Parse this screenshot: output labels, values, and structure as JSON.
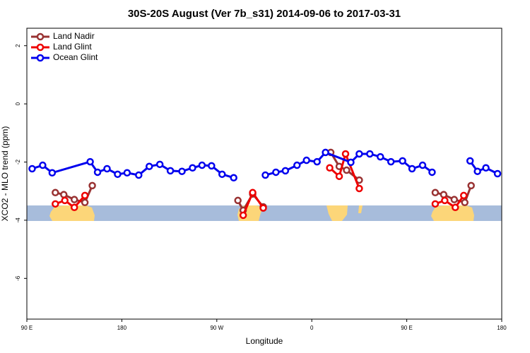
{
  "chart_data": {
    "type": "line",
    "title": "30S-20S August (Ver 7b_s31)   2014-09-06 to 2017-03-31",
    "xlabel": "Longitude",
    "ylabel": "XCO2 - MLO trend (ppm)",
    "xlim": [
      90,
      540
    ],
    "xticks": [
      {
        "value": 90,
        "label": "90 E"
      },
      {
        "value": 180,
        "label": "180"
      },
      {
        "value": 270,
        "label": "90 W"
      },
      {
        "value": 360,
        "label": "0"
      },
      {
        "value": 450,
        "label": "90 E"
      },
      {
        "value": 540,
        "label": "180"
      }
    ],
    "ylim": [
      -7.4,
      2.6
    ],
    "yticks": [
      -6,
      -4,
      -2,
      0,
      2
    ],
    "legend": "top-left",
    "series": [
      {
        "name": "Land Nadir",
        "color": "#993333",
        "x": [
          117,
          125,
          135,
          145,
          152,
          null,
          290,
          295,
          304,
          314,
          null,
          378,
          386,
          393,
          405,
          null,
          477,
          485,
          495,
          505,
          511
        ],
        "values": [
          -3.05,
          -3.12,
          -3.29,
          -3.39,
          -2.81,
          null,
          -3.32,
          -3.66,
          -3.1,
          -3.54,
          null,
          -1.67,
          -2.15,
          -2.28,
          -2.62,
          null,
          -3.05,
          -3.12,
          -3.29,
          -3.39,
          -2.81
        ]
      },
      {
        "name": "Land Glint",
        "color": "#ee0000",
        "x": [
          117,
          126,
          135,
          145,
          null,
          295,
          304,
          314,
          null,
          377,
          386,
          392,
          405,
          null,
          477,
          486,
          496,
          504
        ],
        "values": [
          -3.44,
          -3.32,
          -3.56,
          -3.15,
          null,
          -3.83,
          -3.05,
          -3.58,
          null,
          -2.2,
          -2.49,
          -1.72,
          -2.91,
          null,
          -3.44,
          -3.32,
          -3.56,
          -3.15
        ]
      },
      {
        "name": "Ocean Glint",
        "color": "#0000ee",
        "x": [
          95,
          105,
          114,
          150,
          157,
          166,
          176,
          185,
          196,
          206,
          216,
          226,
          237,
          247,
          256,
          265,
          275,
          286,
          null,
          316,
          326,
          335,
          346,
          355,
          365,
          373,
          397,
          405,
          415,
          425,
          435,
          446,
          455,
          465,
          474,
          null,
          510,
          517,
          525,
          536
        ],
        "values": [
          -2.23,
          -2.11,
          -2.37,
          -1.99,
          -2.35,
          -2.23,
          -2.42,
          -2.37,
          -2.45,
          -2.15,
          -2.08,
          -2.3,
          -2.32,
          -2.2,
          -2.11,
          -2.13,
          -2.42,
          -2.54,
          null,
          -2.45,
          -2.35,
          -2.3,
          -2.11,
          -1.94,
          -1.99,
          -1.67,
          -2.01,
          -1.72,
          -1.72,
          -1.82,
          -1.99,
          -1.96,
          -2.23,
          -2.11,
          -2.35,
          null,
          -1.96,
          -2.32,
          -2.2,
          -2.4
        ]
      }
    ]
  }
}
